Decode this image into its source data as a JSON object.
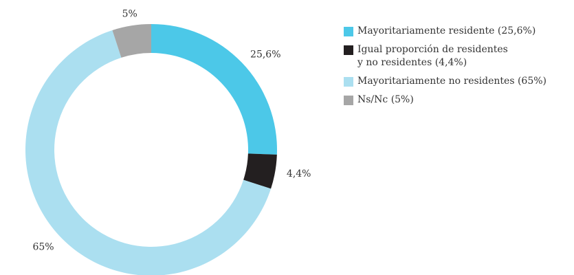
{
  "chart_data": {
    "type": "pie",
    "categories": [
      "Mayoritariamente residente (25,6%)",
      "Igual proporción de residentes\ny no residentes (4,4%)",
      "Mayoritariamente no residentes (65%)",
      "Ns/Nc (5%)"
    ],
    "values": [
      25.6,
      4.4,
      65,
      5
    ],
    "value_labels": [
      "25,6%",
      "4,4%",
      "65%",
      "5%"
    ],
    "colors": [
      "#4cc8e8",
      "#231f20",
      "#abdff0",
      "#a6a6a6"
    ],
    "legend": "right"
  }
}
